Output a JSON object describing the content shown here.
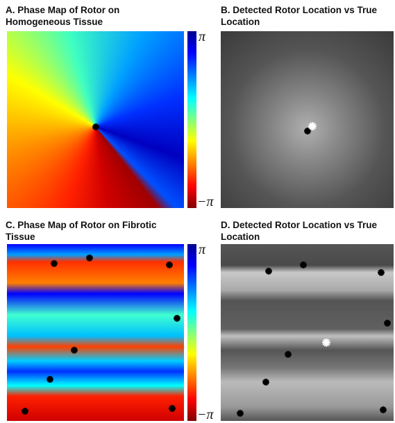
{
  "panels": [
    {
      "title": "A. Phase Map of Rotor on Homogeneous Tissue",
      "colorbar": {
        "max_label": "π",
        "min_label": "−π"
      }
    },
    {
      "title": "B. Detected Rotor Location vs True Location"
    },
    {
      "title": "C. Phase Map of Rotor on Fibrotic Tissue",
      "colorbar": {
        "max_label": "π",
        "min_label": "−π"
      }
    },
    {
      "title": "D. Detected Rotor Location vs True Location"
    }
  ]
}
